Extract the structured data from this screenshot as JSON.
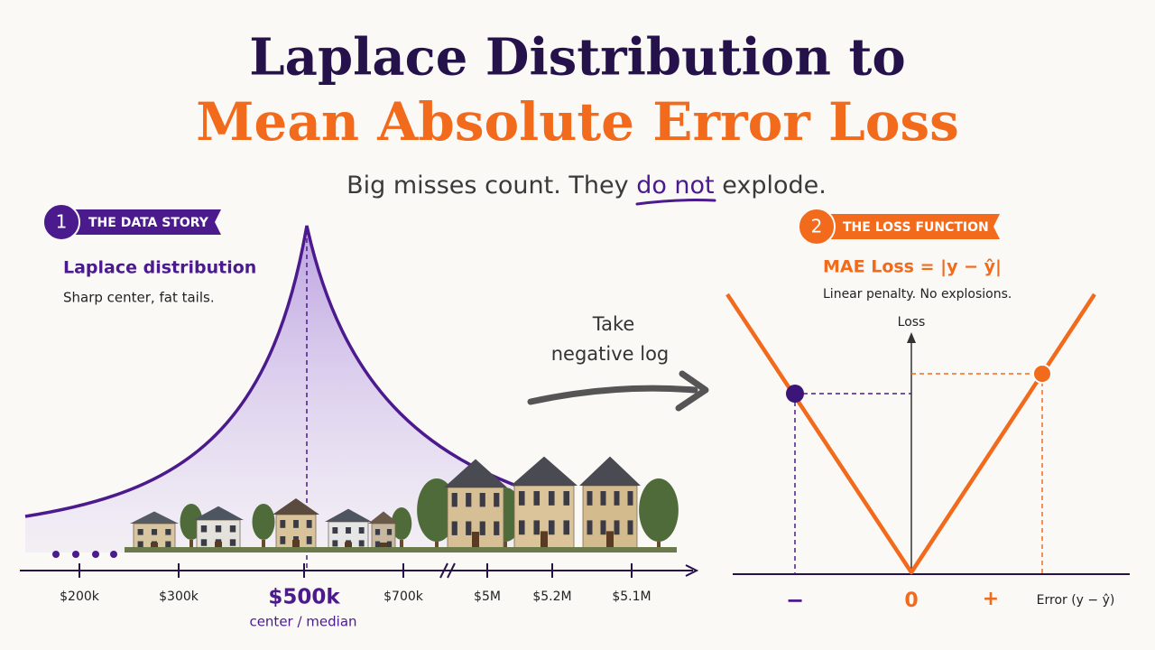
{
  "header": {
    "title_line1": "Laplace Distribution to",
    "title_line2": "Mean Absolute Error Loss",
    "subtitle": {
      "before": "Big misses count. They ",
      "emphasis": "do not",
      "after": " explode."
    }
  },
  "left_panel": {
    "badge_number": "1",
    "badge_label": "THE DATA STORY",
    "heading": "Laplace distribution",
    "caption": "Sharp center, fat tails.",
    "axis_labels": [
      "$200k",
      "$300k",
      "$500k",
      "$700k",
      "$5M",
      "$5.2M",
      "$5.1M"
    ],
    "center_caption": "center / median"
  },
  "transition": {
    "lines": [
      "Take",
      "negative log"
    ]
  },
  "right_panel": {
    "badge_number": "2",
    "badge_label": "THE LOSS FUNCTION",
    "formula": "MAE Loss = |y − ŷ|",
    "caption": "Linear penalty. No explosions.",
    "y_axis_label": "Loss",
    "x_axis_label": "Error (y − ŷ)",
    "x_labels": [
      "−",
      "0",
      "+"
    ]
  }
}
